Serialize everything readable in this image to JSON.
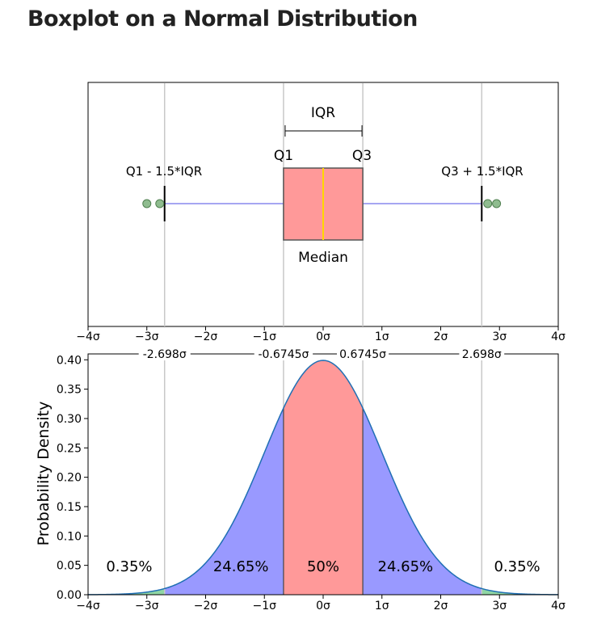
{
  "page": {
    "title": "Boxplot on a Normal Distribution"
  },
  "colors": {
    "box_fill": "#ff9999",
    "box_edge": "#555555",
    "median": "#ffd700",
    "whisker": "#8888ee",
    "cap": "#000000",
    "outlier_fill": "#8fbc8f",
    "outlier_edge": "#4f7f4f",
    "curve": "#1f6fb4",
    "tail_fill": "#8fd6a4",
    "mid_fill": "#9999ff",
    "center_fill": "#ff9999",
    "vline": "#c8c8c8"
  },
  "chart_data": [
    {
      "type": "boxplot",
      "xlim": [
        -4,
        4
      ],
      "ticks": [
        -4,
        -3,
        -2,
        -1,
        0,
        1,
        2,
        3,
        4
      ],
      "tick_labels": [
        "−4σ",
        "−3σ",
        "−2σ",
        "−1σ",
        "0σ",
        "1σ",
        "2σ",
        "3σ",
        "4σ"
      ],
      "q1": -0.6745,
      "median": 0,
      "q3": 0.6745,
      "whisker_low": -2.698,
      "whisker_high": 2.698,
      "outliers": [
        -3.0,
        -2.78,
        2.8,
        2.95
      ],
      "annotations": {
        "iqr": "IQR",
        "q1": "Q1",
        "q3": "Q3",
        "median": "Median",
        "lower_fence": "Q1 - 1.5*IQR",
        "upper_fence": "Q3 + 1.5*IQR"
      }
    },
    {
      "type": "area",
      "function": "standard normal pdf",
      "mean": 0,
      "std": 1,
      "xlim": [
        -4,
        4
      ],
      "ylim": [
        0,
        0.41
      ],
      "ylabel": "Probability Density",
      "xticks": [
        -4,
        -3,
        -2,
        -1,
        0,
        1,
        2,
        3,
        4
      ],
      "xtick_labels": [
        "−4σ",
        "−3σ",
        "−2σ",
        "−1σ",
        "0σ",
        "1σ",
        "2σ",
        "3σ",
        "4σ"
      ],
      "yticks": [
        0.0,
        0.05,
        0.1,
        0.15,
        0.2,
        0.25,
        0.3,
        0.35,
        0.4
      ],
      "ytick_labels": [
        "0.00",
        "0.05",
        "0.10",
        "0.15",
        "0.20",
        "0.25",
        "0.30",
        "0.35",
        "0.40"
      ],
      "boundaries": [
        {
          "x": -2.698,
          "label": "-2.698σ"
        },
        {
          "x": -0.6745,
          "label": "-0.6745σ"
        },
        {
          "x": 0.6745,
          "label": "0.6745σ"
        },
        {
          "x": 2.698,
          "label": "2.698σ"
        }
      ],
      "regions": [
        {
          "label": "0.35%",
          "x": -3.3
        },
        {
          "label": "24.65%",
          "x": -1.4
        },
        {
          "label": "50%",
          "x": 0
        },
        {
          "label": "24.65%",
          "x": 1.4
        },
        {
          "label": "0.35%",
          "x": 3.3
        }
      ]
    }
  ]
}
